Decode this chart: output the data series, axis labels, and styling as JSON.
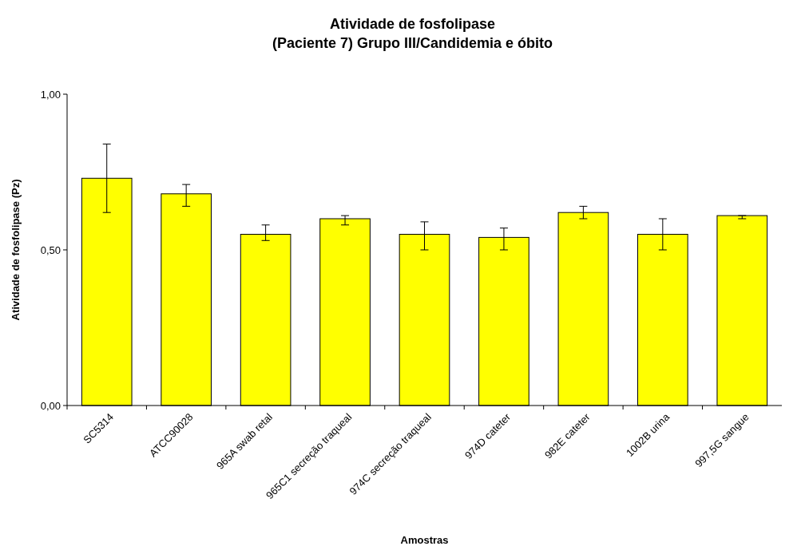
{
  "chart_data": {
    "type": "bar",
    "title": "Atividade de fosfolipase\n(Paciente 7) Grupo III/Candidemia e óbito",
    "xlabel": "Amostras",
    "ylabel": "Atividade de fosfolipase (Pz)",
    "categories": [
      "SC5314",
      "ATCC90028",
      "965A swab retal",
      "965C1 secreção traqueal",
      "974C secreção traqueal",
      "974D cateter",
      "982E cateter",
      "1002B urina",
      "997,5G sangue"
    ],
    "values": [
      0.73,
      0.68,
      0.55,
      0.6,
      0.55,
      0.54,
      0.62,
      0.55,
      0.61
    ],
    "errors": [
      [
        0.62,
        0.84
      ],
      [
        0.64,
        0.71
      ],
      [
        0.53,
        0.58
      ],
      [
        0.58,
        0.61
      ],
      [
        0.5,
        0.59
      ],
      [
        0.5,
        0.57
      ],
      [
        0.6,
        0.64
      ],
      [
        0.5,
        0.6
      ],
      [
        0.6,
        0.61
      ]
    ],
    "color": "#ffff00",
    "ylim": [
      0,
      1
    ],
    "yticks": [
      {
        "value": 0,
        "label": "0,00"
      },
      {
        "value": 0.5,
        "label": "0,50"
      },
      {
        "value": 1,
        "label": "1,00"
      }
    ],
    "grid": false
  }
}
